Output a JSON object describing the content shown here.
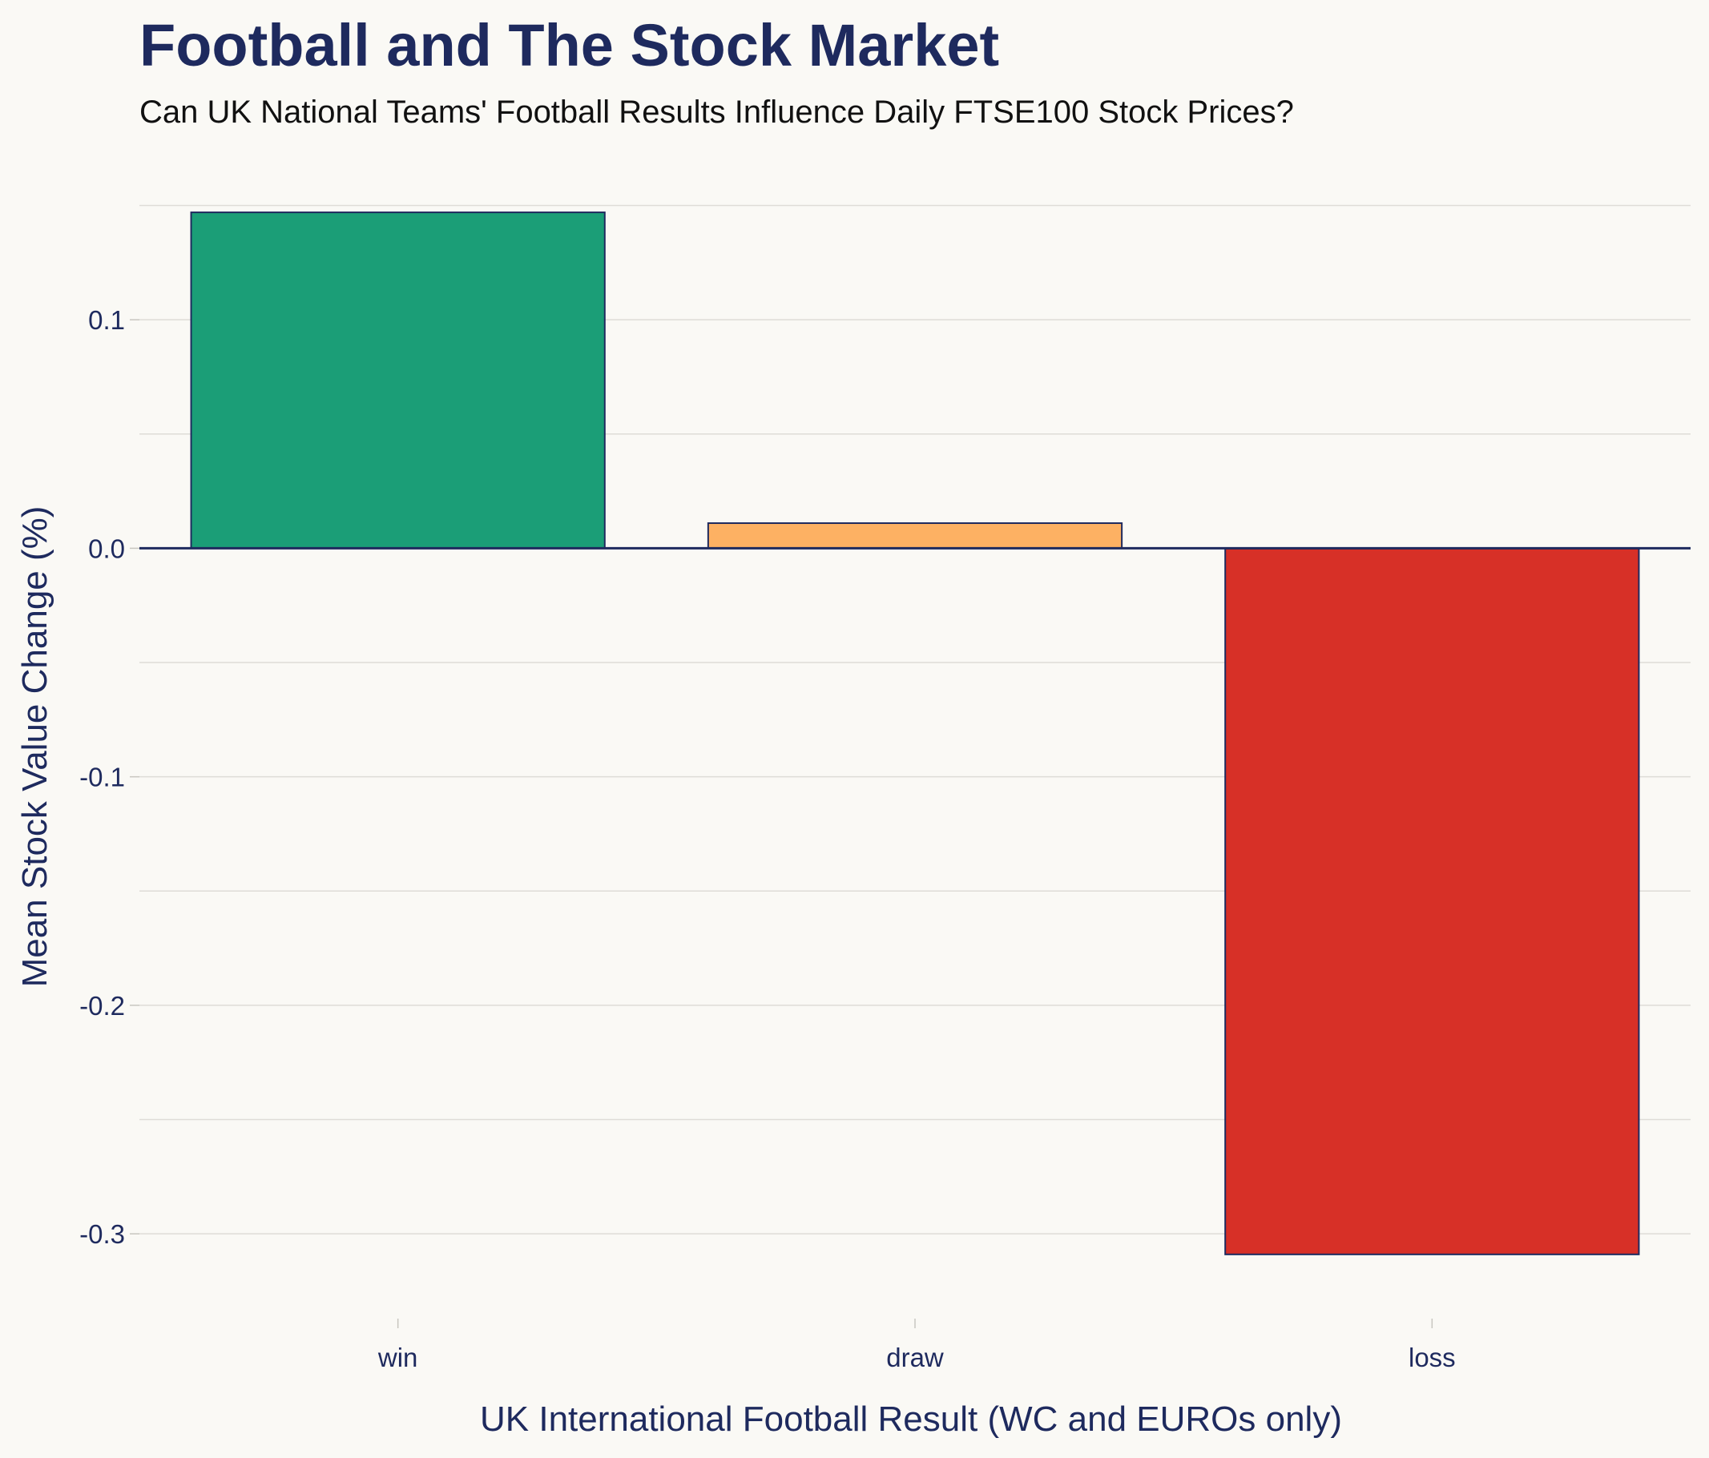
{
  "chart_data": {
    "type": "bar",
    "title": "Football and The Stock Market",
    "subtitle": "Can UK National Teams' Football Results Influence Daily FTSE100 Stock Prices?",
    "xlabel": "UK International Football Result (WC and EUROs only)",
    "ylabel": "Mean Stock Value Change (%)",
    "categories": [
      "win",
      "draw",
      "loss"
    ],
    "values": [
      0.147,
      0.011,
      -0.309
    ],
    "colors": [
      "#1b9e77",
      "#fdb163",
      "#d73027"
    ],
    "bar_outline": "#1e2a5e",
    "ylim": [
      -0.335,
      0.16
    ],
    "yticks": [
      0.1,
      0.0,
      -0.1,
      -0.2,
      -0.3
    ],
    "ytick_labels": [
      "0.1",
      "0.0",
      "-0.1",
      "-0.2",
      "-0.3"
    ],
    "grid": true,
    "zero_line": true
  }
}
